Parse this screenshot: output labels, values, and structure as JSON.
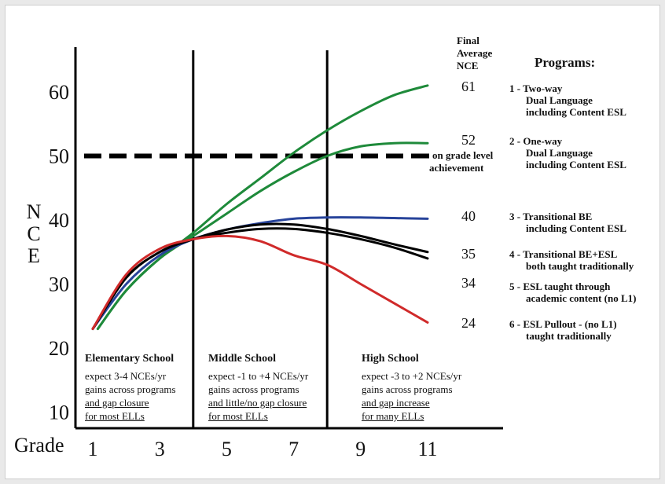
{
  "chart_data": {
    "type": "line",
    "y_axis_label": "NCE",
    "x_axis_label": "Grade",
    "x_tick_labels": [
      "1",
      "3",
      "5",
      "7",
      "9",
      "11"
    ],
    "y_tick_labels": [
      "10",
      "20",
      "30",
      "40",
      "50",
      "60"
    ],
    "xlim": [
      1,
      11
    ],
    "ylim": [
      10,
      65
    ],
    "reference_line": {
      "y": 50,
      "label": "on grade level achievement",
      "style": "dashed"
    },
    "dividers_at_grade": [
      4,
      8
    ],
    "series": [
      {
        "program": "1",
        "final_nce": 61,
        "color": "#1e8a3a",
        "points": [
          [
            1.15,
            23
          ],
          [
            2,
            29
          ],
          [
            3,
            34
          ],
          [
            4,
            38
          ],
          [
            5,
            42.5
          ],
          [
            6,
            46.5
          ],
          [
            7,
            50.5
          ],
          [
            8,
            54
          ],
          [
            9,
            57
          ],
          [
            10,
            59.5
          ],
          [
            11,
            61
          ]
        ]
      },
      {
        "program": "2",
        "final_nce": 52,
        "color": "#1e8a3a",
        "points": [
          [
            1.15,
            23
          ],
          [
            2,
            29
          ],
          [
            3,
            34
          ],
          [
            4,
            37.5
          ],
          [
            5,
            41
          ],
          [
            6,
            44.5
          ],
          [
            7,
            47.5
          ],
          [
            8,
            50
          ],
          [
            9,
            51.5
          ],
          [
            10,
            52
          ],
          [
            11,
            52
          ]
        ]
      },
      {
        "program": "3",
        "final_nce": 40,
        "color": "#27439a",
        "points": [
          [
            1,
            23
          ],
          [
            2,
            30
          ],
          [
            3,
            34.5
          ],
          [
            4,
            37
          ],
          [
            5,
            38.5
          ],
          [
            6,
            39.5
          ],
          [
            7,
            40.2
          ],
          [
            8,
            40.4
          ],
          [
            9,
            40.4
          ],
          [
            10,
            40.3
          ],
          [
            11,
            40.2
          ]
        ]
      },
      {
        "program": "4",
        "final_nce": 35,
        "color": "#000000",
        "points": [
          [
            1,
            23
          ],
          [
            2,
            31
          ],
          [
            3,
            35
          ],
          [
            4,
            37
          ],
          [
            5,
            38.5
          ],
          [
            6,
            39.3
          ],
          [
            7,
            39.3
          ],
          [
            8,
            38.6
          ],
          [
            9,
            37.5
          ],
          [
            10,
            36.2
          ],
          [
            11,
            35
          ]
        ]
      },
      {
        "program": "5",
        "final_nce": 34,
        "color": "#000000",
        "points": [
          [
            1,
            23
          ],
          [
            2,
            31
          ],
          [
            3,
            35
          ],
          [
            4,
            37
          ],
          [
            5,
            38
          ],
          [
            6,
            38.6
          ],
          [
            7,
            38.6
          ],
          [
            8,
            38
          ],
          [
            9,
            37
          ],
          [
            10,
            35.7
          ],
          [
            11,
            34
          ]
        ]
      },
      {
        "program": "6",
        "final_nce": 24,
        "color": "#d02a2a",
        "points": [
          [
            1,
            23
          ],
          [
            2,
            31.5
          ],
          [
            3,
            35.5
          ],
          [
            4,
            37
          ],
          [
            5,
            37.5
          ],
          [
            6,
            36.7
          ],
          [
            7,
            34.5
          ],
          [
            8,
            33
          ],
          [
            9,
            30
          ],
          [
            10,
            27
          ],
          [
            11,
            24
          ]
        ]
      }
    ]
  },
  "header": {
    "final_avg_line1": "Final",
    "final_avg_line2": "Average",
    "final_avg_line3": "NCE",
    "programs_title": "Programs:"
  },
  "final_values": [
    "61",
    "52",
    "40",
    "35",
    "34",
    "24"
  ],
  "programs": [
    {
      "line1": "1 - Two-way",
      "line2": "Dual Language",
      "line3": "including Content ESL"
    },
    {
      "line1": "2 - One-way",
      "line2": "Dual Language",
      "line3": "including Content ESL"
    },
    {
      "line1": "3 - Transitional BE",
      "line2": "including Content ESL",
      "line3": ""
    },
    {
      "line1": "4 - Transitional BE+ESL",
      "line2": "both taught traditionally",
      "line3": ""
    },
    {
      "line1": "5 - ESL taught through",
      "line2": "academic content (no L1)",
      "line3": ""
    },
    {
      "line1": "6 - ESL Pullout - (no L1)",
      "line2": "taught traditionally",
      "line3": ""
    }
  ],
  "reference_label_line1": "on grade level",
  "reference_label_line2": "achievement",
  "sections": [
    {
      "title": "Elementary School",
      "line1": "expect 3-4 NCEs/yr",
      "line2": "gains across programs",
      "line3": "and gap closure",
      "line4": "for most ELLs"
    },
    {
      "title": "Middle School",
      "line1": "expect -1 to +4 NCEs/yr",
      "line2": "gains across programs",
      "line3": "and little/no gap closure",
      "line4": "for most ELLs"
    },
    {
      "title": "High School",
      "line1": "expect -3 to +2 NCEs/yr",
      "line2": "gains across programs",
      "line3": "and gap increase",
      "line4": "for many ELLs"
    }
  ],
  "nce_letters": [
    "N",
    "C",
    "E"
  ]
}
